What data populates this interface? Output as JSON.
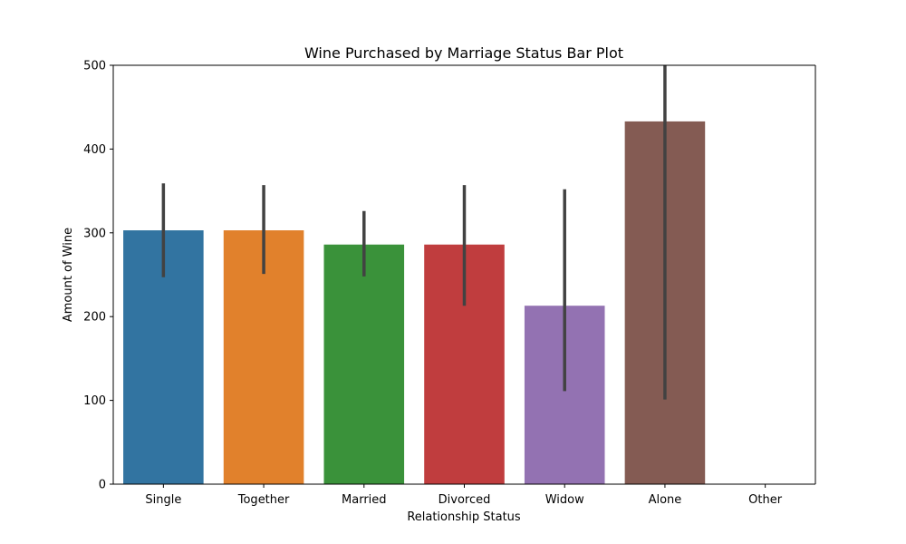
{
  "chart_data": {
    "type": "bar",
    "title": "Wine Purchased by Marriage Status Bar Plot",
    "xlabel": "Relationship Status",
    "ylabel": "Amount of Wine",
    "categories": [
      "Single",
      "Together",
      "Married",
      "Divorced",
      "Widow",
      "Alone",
      "Other"
    ],
    "values": [
      303,
      303,
      286,
      286,
      213,
      433,
      null
    ],
    "error_low": [
      247,
      251,
      248,
      213,
      111,
      101,
      null
    ],
    "error_high": [
      359,
      357,
      326,
      357,
      352,
      500,
      null
    ],
    "colors": [
      "#3274a1",
      "#e1812c",
      "#3a923a",
      "#c03d3e",
      "#9372b2",
      "#845b53",
      "#d684bd"
    ],
    "ylim": [
      0,
      500
    ],
    "yticks": [
      0,
      100,
      200,
      300,
      400,
      500
    ],
    "grid": false,
    "legend": "none"
  }
}
